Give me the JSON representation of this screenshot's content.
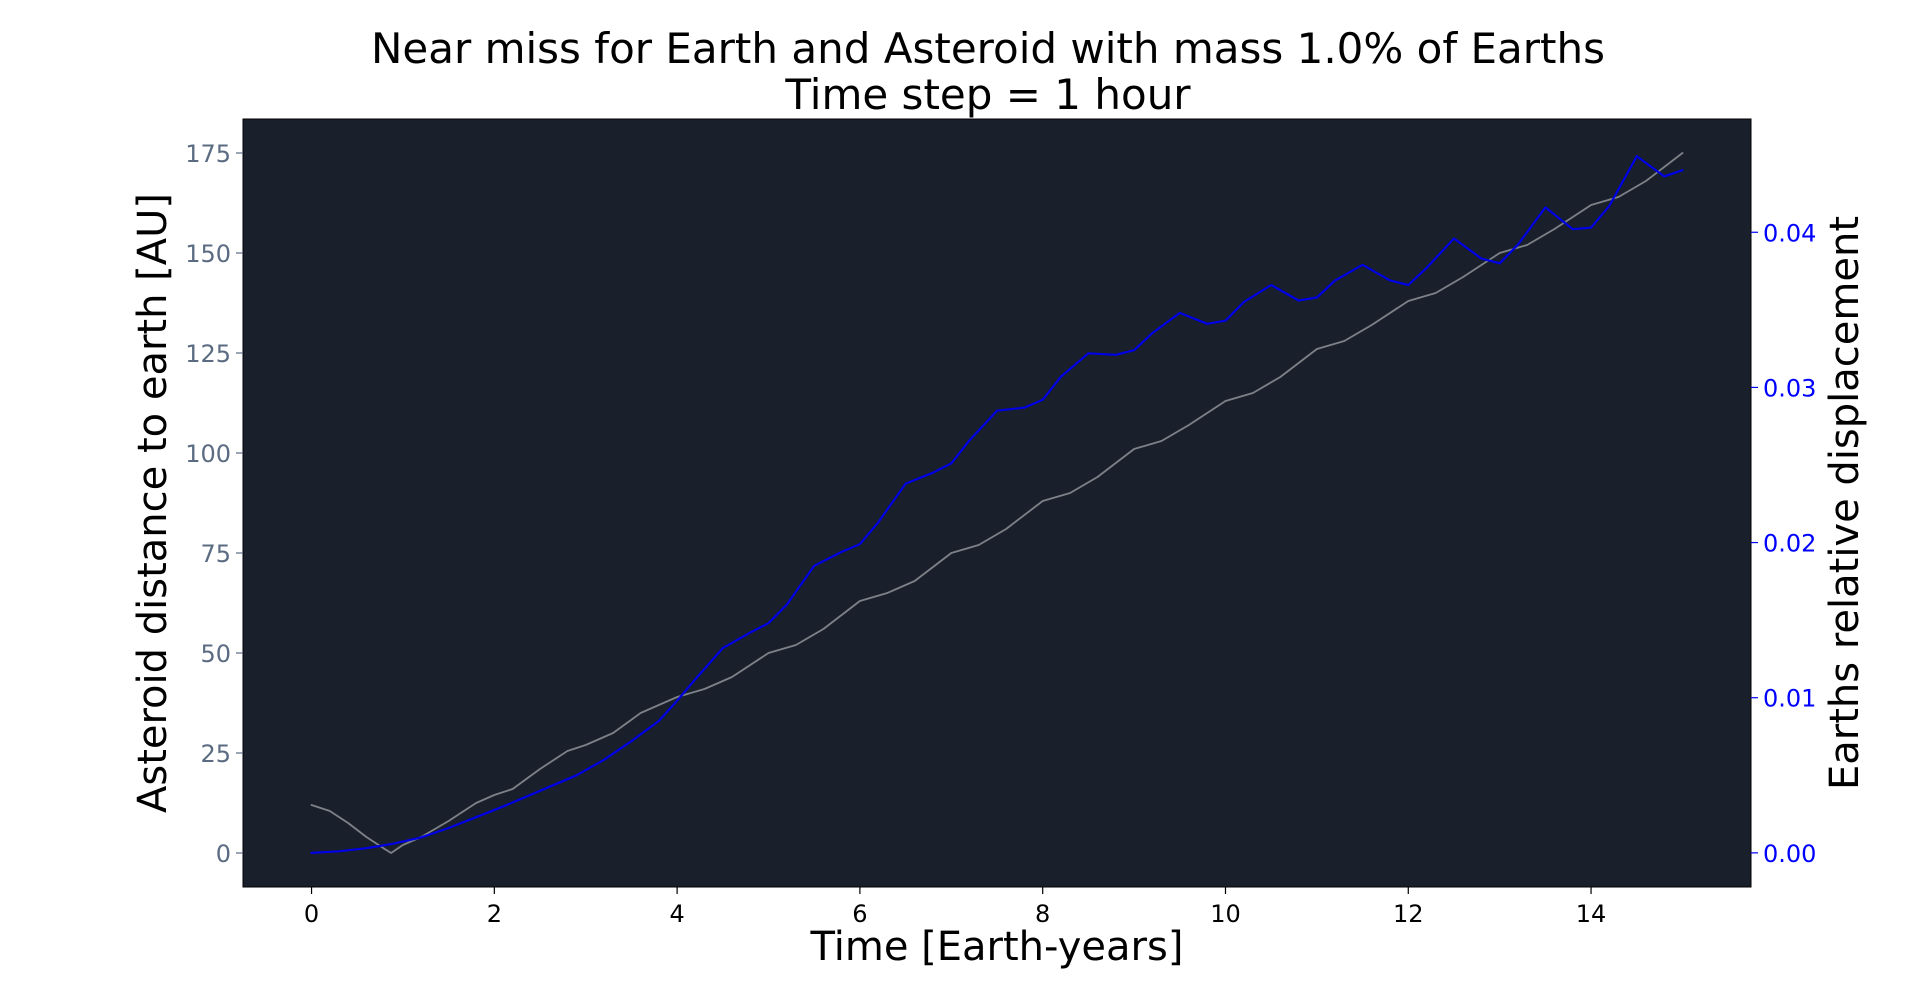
{
  "chart_data": {
    "type": "line",
    "title": "Near miss for Earth and Asteroid with mass 1.0% of Earths",
    "subtitle": "Time step = 1 hour",
    "xlabel": "Time [Earth-years]",
    "ylabel": "Asteroid distance to earth [AU]",
    "y2label": "Earths relative displacement",
    "xlim": [
      -0.75,
      15.75
    ],
    "ylim": [
      -8.5,
      183.5
    ],
    "y2lim": [
      -0.0022,
      0.0473
    ],
    "xticks": [
      "0",
      "2",
      "4",
      "6",
      "8",
      "10",
      "12",
      "14"
    ],
    "yticks": [
      "0",
      "25",
      "50",
      "75",
      "100",
      "125",
      "150",
      "175"
    ],
    "y2ticks": [
      "0.00",
      "0.01",
      "0.02",
      "0.03",
      "0.04"
    ],
    "grid": false,
    "colors": {
      "plot_background": "#1a202b",
      "left_axis": "#5a6b82",
      "right_axis": "#0000ff",
      "distance_line": "#7d8288",
      "displacement_line": "#0000e6"
    },
    "series": [
      {
        "axis": "left",
        "x": [
          0,
          0.2,
          0.4,
          0.6,
          0.8,
          0.87,
          1.0,
          1.2,
          1.5,
          1.8,
          2.0,
          2.2,
          2.5,
          2.8,
          3.0,
          3.3,
          3.6,
          4.0,
          4.3,
          4.6,
          5.0,
          5.3,
          5.6,
          6.0,
          6.3,
          6.6,
          7.0,
          7.3,
          7.6,
          8.0,
          8.3,
          8.6,
          9.0,
          9.3,
          9.6,
          10.0,
          10.3,
          10.6,
          11.0,
          11.3,
          11.6,
          12.0,
          12.3,
          12.6,
          13.0,
          13.3,
          13.6,
          14.0,
          14.3,
          14.6,
          15.0
        ],
        "values": [
          12,
          10.5,
          7.5,
          4,
          1,
          0,
          2,
          4,
          8,
          12.5,
          14.5,
          16,
          21,
          25.5,
          27,
          30,
          35,
          39,
          41,
          44,
          50,
          52,
          56,
          63,
          65,
          68,
          75,
          77,
          81,
          88,
          90,
          94,
          101,
          103,
          107,
          113,
          115,
          119,
          126,
          128,
          132,
          138,
          140,
          144,
          150,
          152,
          156,
          162,
          164,
          168,
          175
        ]
      },
      {
        "axis": "right",
        "x": [
          0,
          0.3,
          0.6,
          0.9,
          1.2,
          1.5,
          1.8,
          2.1,
          2.5,
          2.9,
          3.2,
          3.5,
          3.8,
          4.0,
          4.2,
          4.5,
          4.8,
          5.0,
          5.2,
          5.5,
          5.8,
          6.0,
          6.2,
          6.5,
          6.8,
          7.0,
          7.2,
          7.5,
          7.8,
          8.0,
          8.2,
          8.5,
          8.8,
          9.0,
          9.2,
          9.5,
          9.8,
          10.0,
          10.2,
          10.5,
          10.8,
          11.0,
          11.2,
          11.5,
          11.8,
          12.0,
          12.2,
          12.5,
          12.8,
          13.0,
          13.2,
          13.5,
          13.8,
          14.0,
          14.2,
          14.5,
          14.8,
          15.0
        ],
        "values": [
          0,
          0.0001,
          0.0003,
          0.0006,
          0.001,
          0.0016,
          0.0023,
          0.003,
          0.004,
          0.005,
          0.006,
          0.0072,
          0.0085,
          0.0098,
          0.0112,
          0.0132,
          0.0142,
          0.0148,
          0.016,
          0.0185,
          0.0194,
          0.0199,
          0.0213,
          0.0238,
          0.0245,
          0.0251,
          0.0266,
          0.0285,
          0.0287,
          0.0292,
          0.0307,
          0.0322,
          0.0321,
          0.0324,
          0.0335,
          0.0348,
          0.0341,
          0.0343,
          0.0355,
          0.0366,
          0.0356,
          0.0358,
          0.0369,
          0.0379,
          0.0369,
          0.0366,
          0.0377,
          0.0396,
          0.0383,
          0.038,
          0.0392,
          0.0416,
          0.0402,
          0.0403,
          0.0417,
          0.0449,
          0.0436,
          0.044
        ]
      }
    ]
  }
}
